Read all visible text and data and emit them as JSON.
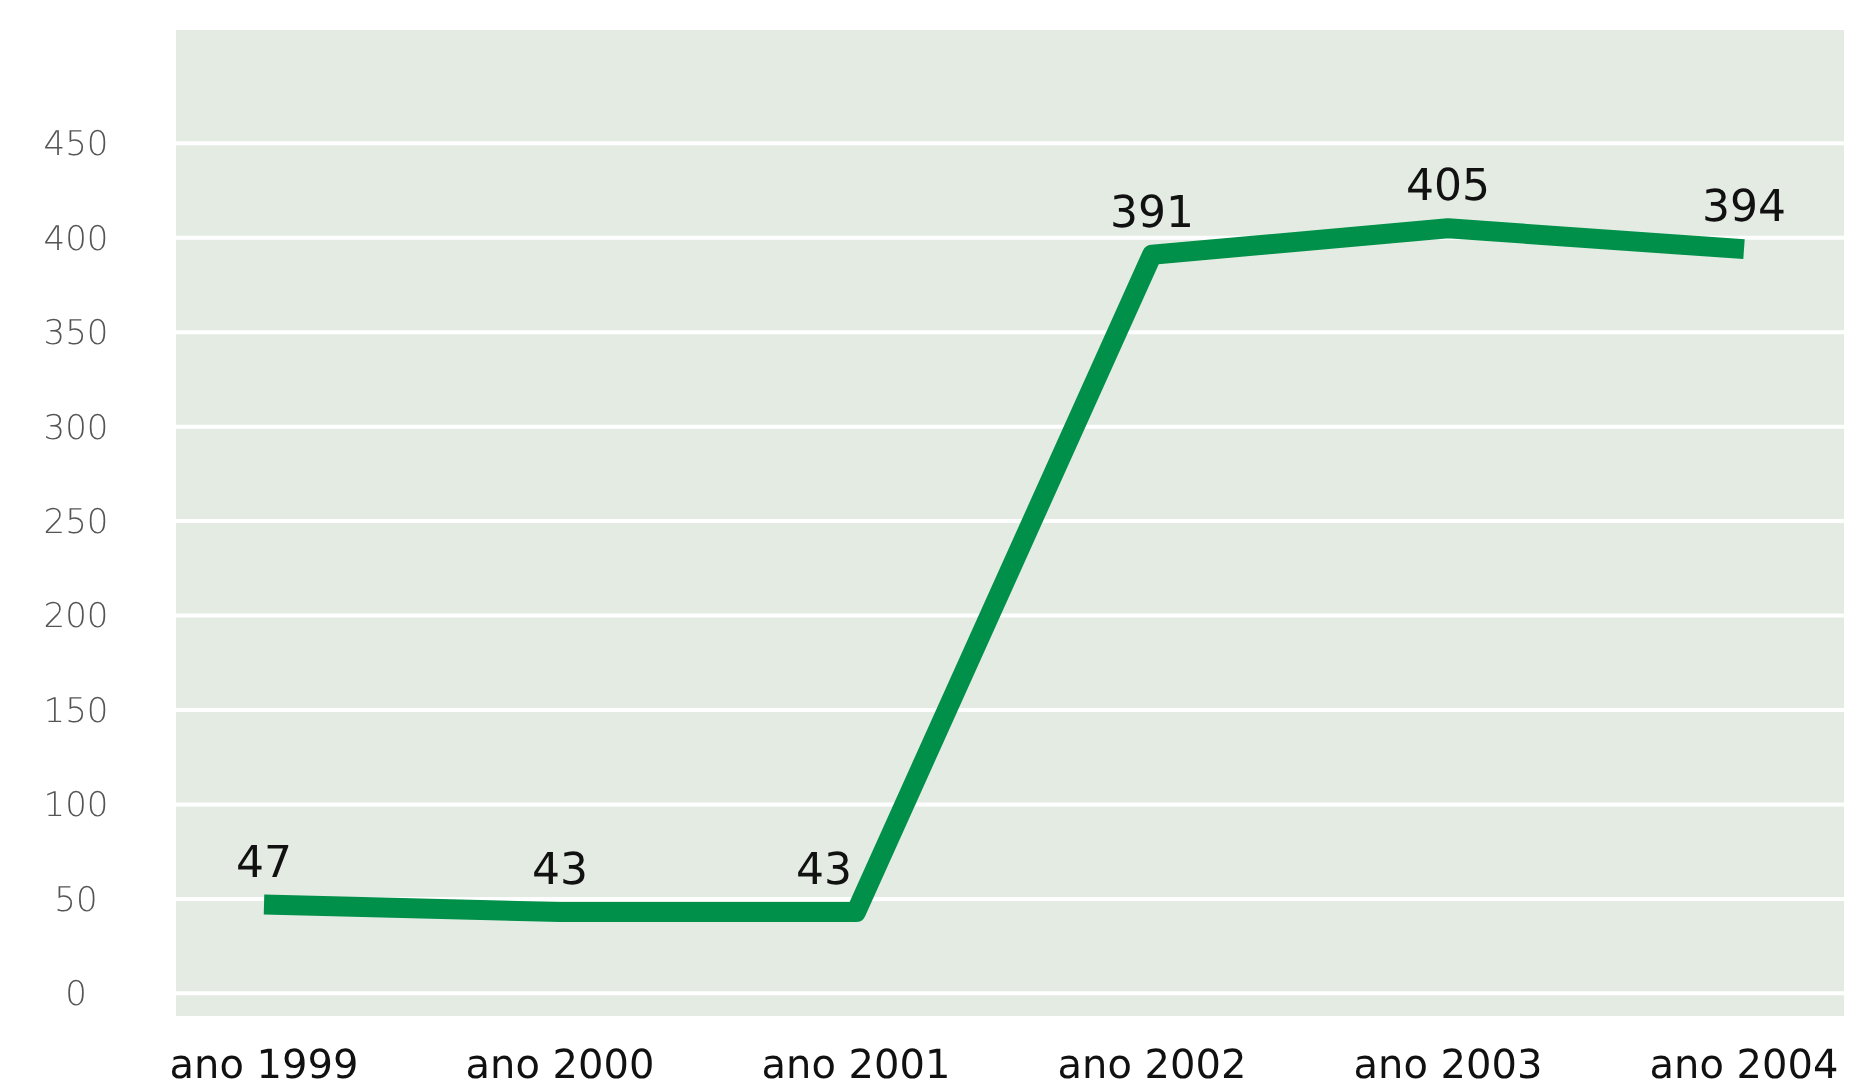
{
  "chart_data": {
    "type": "line",
    "categories": [
      "ano 1999",
      "ano 2000",
      "ano 2001",
      "ano 2002",
      "ano 2003",
      "ano 2004"
    ],
    "series": [
      {
        "color": "#00904a",
        "values": [
          47,
          43,
          43,
          391,
          405,
          394
        ]
      }
    ],
    "ylim": [
      -12,
      510
    ],
    "yticks": [
      0,
      50,
      100,
      150,
      200,
      250,
      300,
      350,
      400,
      450
    ],
    "grid": "y",
    "data_labels": true,
    "marker": "none",
    "line_style": "solid"
  }
}
